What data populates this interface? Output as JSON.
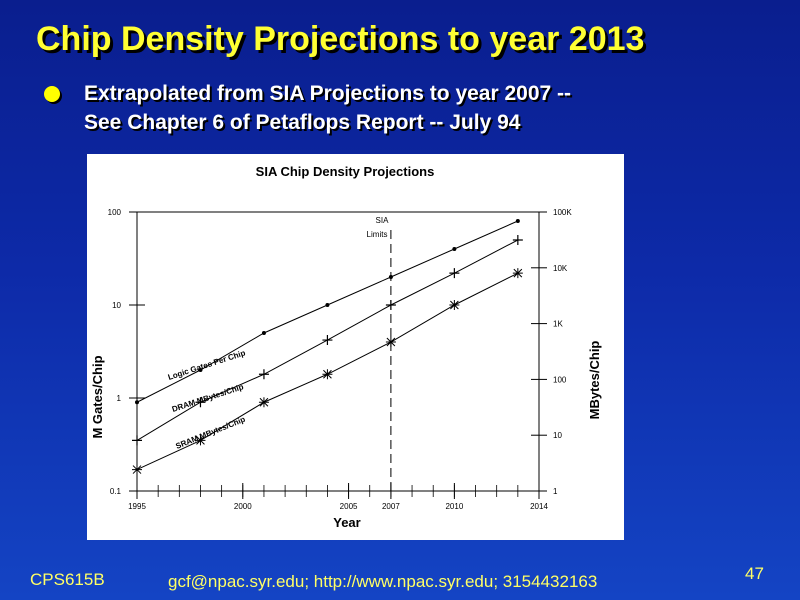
{
  "slide": {
    "title": "Chip Density Projections to year 2013",
    "bullet_line1": "Extrapolated from SIA Projections to year 2007 --",
    "bullet_line2": "See Chapter 6 of Petaflops Report -- July 94"
  },
  "footer": {
    "course": "CPS615B",
    "contact": "gcf@npac.syr.edu; http://www.npac.syr.edu; 3154432163",
    "page": "47"
  },
  "colors": {
    "title": "#ffff33",
    "bullet": "#ffff00",
    "footer": "#ffff66"
  },
  "chart_data": {
    "type": "line",
    "title": "SIA Chip Density Projections",
    "xlabel": "Year",
    "ylabel_left": "M Gates/Chip",
    "ylabel_right": "MBytes/Chip",
    "x_ticks": [
      {
        "v": 1995,
        "label": "1995"
      },
      {
        "v": 2000,
        "label": "2000"
      },
      {
        "v": 2005,
        "label": "2005"
      },
      {
        "v": 2007,
        "label": "2007"
      },
      {
        "v": 2010,
        "label": "2010"
      },
      {
        "v": 2014,
        "label": "2014"
      }
    ],
    "xlim": [
      1995,
      2014
    ],
    "y_left_scale": "log",
    "y_left_lim": [
      0.1,
      100
    ],
    "y_left_ticks": [
      {
        "v": 0.1,
        "label": "0.1"
      },
      {
        "v": 1,
        "label": "1"
      },
      {
        "v": 10,
        "label": "10"
      },
      {
        "v": 100,
        "label": "100"
      }
    ],
    "y_right_scale": "log",
    "y_right_lim": [
      1,
      100000
    ],
    "y_right_ticks": [
      {
        "v": 1,
        "label": "1"
      },
      {
        "v": 10,
        "label": "10"
      },
      {
        "v": 100,
        "label": "100"
      },
      {
        "v": 1000,
        "label": "1K"
      },
      {
        "v": 10000,
        "label": "10K"
      },
      {
        "v": 100000,
        "label": "100K"
      }
    ],
    "sia_limit": {
      "x": 2007,
      "label_line1": "SIA",
      "label_line2": "Limits"
    },
    "series": [
      {
        "name": "Logic Gates Per Chip",
        "axis": "left",
        "marker": "dot",
        "points": [
          [
            1995,
            0.9
          ],
          [
            1998,
            2
          ],
          [
            2001,
            5
          ],
          [
            2004,
            10
          ],
          [
            2007,
            20
          ],
          [
            2010,
            40
          ],
          [
            2013,
            80
          ]
        ]
      },
      {
        "name": "DRAM MBytes/Chip",
        "axis": "left",
        "marker": "plus",
        "points": [
          [
            1995,
            0.35
          ],
          [
            1998,
            0.9
          ],
          [
            2001,
            1.8
          ],
          [
            2004,
            4.2
          ],
          [
            2007,
            10
          ],
          [
            2010,
            22
          ],
          [
            2013,
            50
          ]
        ]
      },
      {
        "name": "SRAM MBytes/Chip",
        "axis": "left",
        "marker": "asterisk",
        "points": [
          [
            1995,
            0.17
          ],
          [
            1998,
            0.35
          ],
          [
            2001,
            0.9
          ],
          [
            2004,
            1.8
          ],
          [
            2007,
            4
          ],
          [
            2010,
            10
          ],
          [
            2013,
            22
          ]
        ]
      }
    ]
  }
}
